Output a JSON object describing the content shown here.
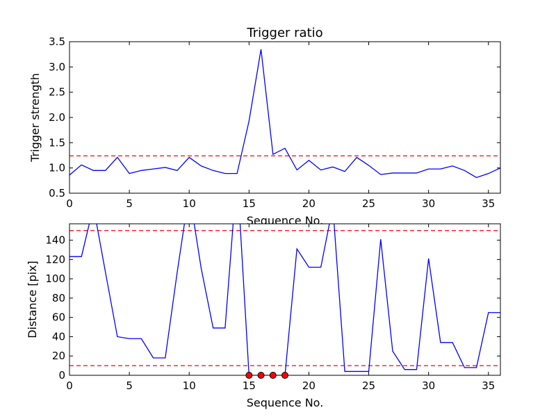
{
  "chart_data": [
    {
      "type": "line",
      "title": "Trigger ratio",
      "xlabel": "Sequence No.",
      "ylabel": "Trigger strength",
      "xlim": [
        0,
        36
      ],
      "ylim": [
        0.5,
        3.5
      ],
      "xticks": [
        "0",
        "5",
        "10",
        "15",
        "20",
        "25",
        "30",
        "35"
      ],
      "yticks": [
        "0.5",
        "1.0",
        "1.5",
        "2.0",
        "2.5",
        "3.0",
        "3.5"
      ],
      "grid": false,
      "series": [
        {
          "color": "#0000ff",
          "x": [
            0,
            1,
            2,
            3,
            4,
            5,
            6,
            7,
            8,
            9,
            10,
            11,
            12,
            13,
            14,
            15,
            16,
            17,
            18,
            19,
            20,
            21,
            22,
            23,
            24,
            25,
            26,
            27,
            28,
            29,
            30,
            31,
            32,
            33,
            34,
            35,
            36
          ],
          "y": [
            0.86,
            1.06,
            0.95,
            0.95,
            1.21,
            0.89,
            0.95,
            0.98,
            1.01,
            0.95,
            1.21,
            1.04,
            0.95,
            0.89,
            0.89,
            1.93,
            3.35,
            1.27,
            1.39,
            0.96,
            1.15,
            0.96,
            1.02,
            0.93,
            1.21,
            1.05,
            0.87,
            0.9,
            0.9,
            0.9,
            0.98,
            0.98,
            1.04,
            0.95,
            0.81,
            0.89,
            1.0
          ]
        }
      ],
      "threshold_lines": [
        {
          "y": 1.24,
          "color": "#ff0000",
          "style": "dashed"
        }
      ]
    },
    {
      "type": "line",
      "title": "",
      "xlabel": "Sequence No.",
      "ylabel": "Distance [pix]",
      "xlim": [
        0,
        36
      ],
      "ylim": [
        0,
        157
      ],
      "xticks": [
        "0",
        "5",
        "10",
        "15",
        "20",
        "25",
        "30",
        "35"
      ],
      "yticks": [
        "0",
        "20",
        "40",
        "60",
        "80",
        "100",
        "120",
        "140"
      ],
      "grid": false,
      "series": [
        {
          "color": "#0000ff",
          "x": [
            0,
            1,
            2,
            3,
            4,
            5,
            6,
            7,
            8,
            9,
            10,
            11,
            12,
            13,
            14,
            15,
            16,
            17,
            18,
            19,
            20,
            21,
            22,
            23,
            24,
            25,
            26,
            27,
            28,
            29,
            30,
            31,
            32,
            33,
            34,
            35,
            36
          ],
          "y": [
            123,
            123,
            175,
            107,
            40,
            38,
            38,
            18,
            18,
            107,
            190,
            111,
            49,
            49,
            210,
            0,
            0,
            0,
            0,
            131,
            112,
            112,
            175,
            4,
            4,
            4,
            141,
            25,
            6,
            6,
            121,
            34,
            34,
            8,
            8,
            65,
            65
          ]
        }
      ],
      "markers": [
        {
          "x": 15,
          "y": 0,
          "color": "#ff0000"
        },
        {
          "x": 16,
          "y": 0,
          "color": "#ff0000"
        },
        {
          "x": 17,
          "y": 0,
          "color": "#ff0000"
        },
        {
          "x": 18,
          "y": 0,
          "color": "#ff0000"
        }
      ],
      "threshold_lines": [
        {
          "y": 150,
          "color": "#ff0000",
          "style": "dashed"
        },
        {
          "y": 10,
          "color": "#ff0000",
          "style": "dashed"
        }
      ]
    }
  ]
}
